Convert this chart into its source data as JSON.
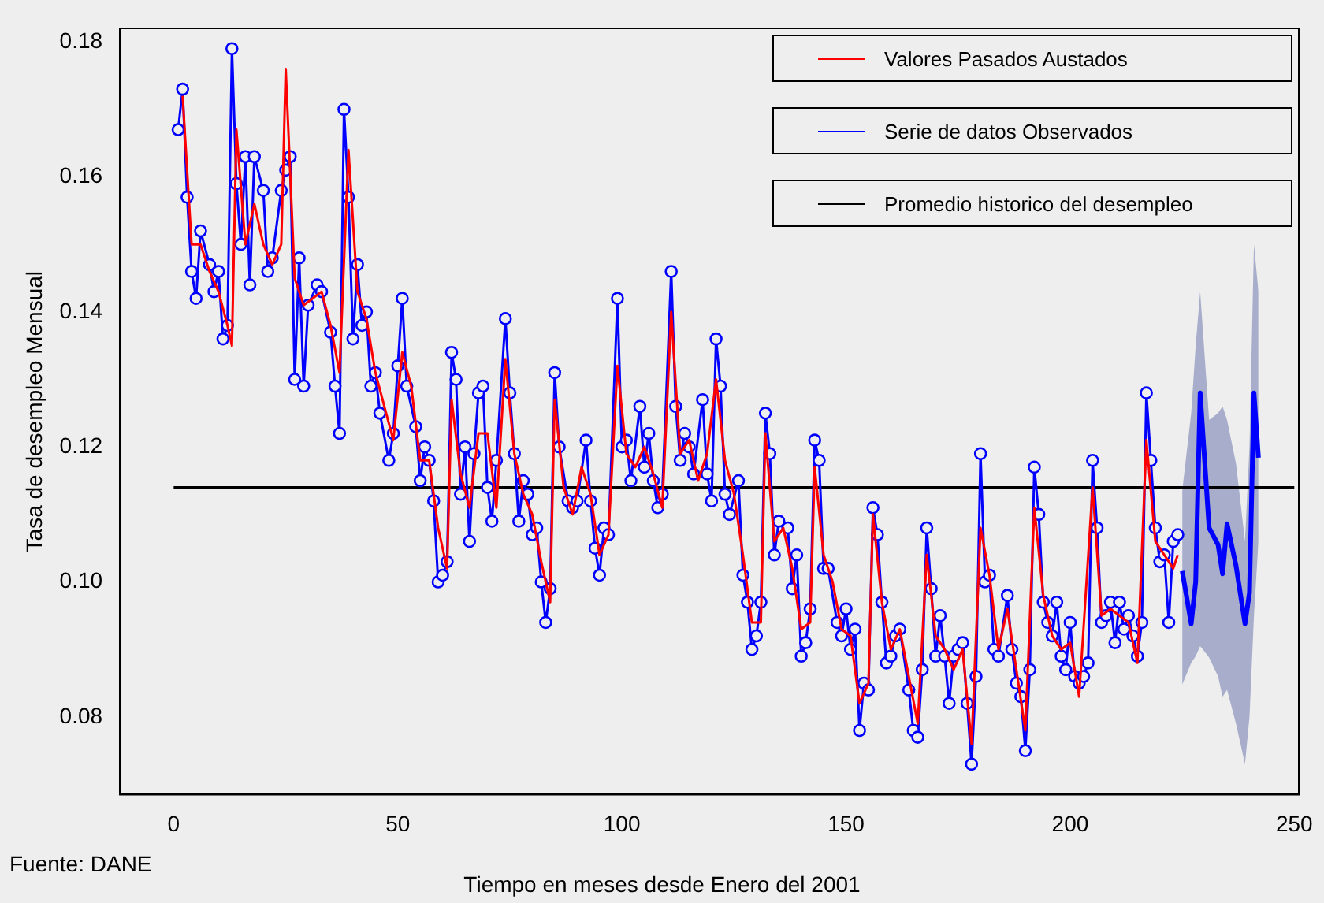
{
  "chart_data": {
    "type": "line",
    "xlabel": "Tiempo en meses desde Enero del 2001",
    "ylabel": "Tasa de desempleo Mensual",
    "xlim": [
      -12,
      251
    ],
    "xticks": [
      0,
      50,
      100,
      150,
      200,
      250
    ],
    "ylim": [
      0.0685,
      0.182
    ],
    "yticks": [
      0.08,
      {
        "value": 0.1,
        "label": "0.10"
      },
      0.12,
      0.14,
      0.16,
      0.18
    ],
    "grid": false,
    "legend": "top right",
    "annotations": [
      "Fuente: DANE"
    ],
    "series": [
      {
        "name": "Valores  Pasados Austados",
        "color": "#ff0000",
        "marker": "none",
        "x": [
          2,
          4,
          6,
          8,
          10,
          12,
          13,
          14,
          16,
          18,
          20,
          22,
          24,
          25,
          27,
          29,
          31,
          33,
          35,
          37,
          39,
          41,
          43,
          45,
          47,
          49,
          51,
          53,
          55,
          57,
          59,
          61,
          62,
          64,
          66,
          68,
          70,
          72,
          74,
          76,
          78,
          80,
          82,
          84,
          85,
          87,
          89,
          91,
          93,
          95,
          97,
          99,
          101,
          103,
          105,
          107,
          109,
          111,
          113,
          115,
          117,
          119,
          121,
          123,
          125,
          127,
          129,
          131,
          132,
          134,
          136,
          138,
          140,
          142,
          143,
          145,
          147,
          149,
          151,
          153,
          155,
          156,
          158,
          160,
          162,
          164,
          166,
          168,
          170,
          172,
          174,
          176,
          178,
          180,
          182,
          184,
          186,
          188,
          190,
          192,
          194,
          196,
          198,
          200,
          202,
          205,
          207,
          209,
          211,
          213,
          215,
          217,
          219,
          221,
          223,
          224
        ],
        "values": [
          0.172,
          0.15,
          0.15,
          0.146,
          0.143,
          0.138,
          0.135,
          0.167,
          0.15,
          0.156,
          0.15,
          0.147,
          0.15,
          0.176,
          0.145,
          0.141,
          0.142,
          0.143,
          0.138,
          0.131,
          0.164,
          0.143,
          0.139,
          0.131,
          0.126,
          0.121,
          0.134,
          0.129,
          0.118,
          0.118,
          0.108,
          0.102,
          0.127,
          0.116,
          0.111,
          0.122,
          0.122,
          0.111,
          0.133,
          0.119,
          0.113,
          0.11,
          0.103,
          0.097,
          0.127,
          0.114,
          0.11,
          0.117,
          0.113,
          0.104,
          0.107,
          0.132,
          0.119,
          0.117,
          0.12,
          0.116,
          0.111,
          0.14,
          0.119,
          0.121,
          0.115,
          0.119,
          0.13,
          0.118,
          0.113,
          0.104,
          0.094,
          0.094,
          0.122,
          0.106,
          0.108,
          0.102,
          0.093,
          0.094,
          0.117,
          0.104,
          0.1,
          0.093,
          0.092,
          0.082,
          0.085,
          0.11,
          0.097,
          0.09,
          0.093,
          0.086,
          0.079,
          0.104,
          0.092,
          0.09,
          0.087,
          0.09,
          0.076,
          0.108,
          0.101,
          0.09,
          0.096,
          0.087,
          0.078,
          0.111,
          0.098,
          0.092,
          0.09,
          0.091,
          0.083,
          0.114,
          0.095,
          0.096,
          0.095,
          0.094,
          0.088,
          0.121,
          0.106,
          0.104,
          0.102,
          0.104
        ]
      },
      {
        "name": "Serie de datos Observados",
        "color": "#0000ff",
        "marker": "circle",
        "x": [
          1,
          2,
          3,
          4,
          5,
          6,
          8,
          9,
          10,
          11,
          12,
          13,
          14,
          15,
          16,
          17,
          18,
          20,
          21,
          22,
          24,
          25,
          26,
          27,
          28,
          29,
          30,
          32,
          33,
          35,
          36,
          37,
          38,
          39,
          40,
          41,
          42,
          43,
          44,
          45,
          46,
          48,
          49,
          50,
          51,
          52,
          54,
          55,
          56,
          57,
          58,
          59,
          60,
          61,
          62,
          63,
          64,
          65,
          66,
          67,
          68,
          69,
          70,
          71,
          72,
          74,
          75,
          76,
          77,
          78,
          79,
          80,
          81,
          82,
          83,
          84,
          85,
          86,
          88,
          89,
          90,
          92,
          93,
          94,
          95,
          96,
          97,
          99,
          100,
          101,
          102,
          104,
          105,
          106,
          107,
          108,
          109,
          111,
          112,
          113,
          114,
          115,
          116,
          118,
          119,
          120,
          121,
          122,
          123,
          124,
          126,
          127,
          128,
          129,
          130,
          131,
          132,
          133,
          134,
          135,
          137,
          138,
          139,
          140,
          141,
          142,
          143,
          144,
          145,
          146,
          148,
          149,
          150,
          151,
          152,
          153,
          154,
          155,
          156,
          157,
          158,
          159,
          160,
          161,
          162,
          164,
          165,
          166,
          167,
          168,
          169,
          170,
          171,
          172,
          173,
          174,
          175,
          176,
          177,
          178,
          179,
          180,
          181,
          182,
          183,
          184,
          186,
          187,
          188,
          189,
          190,
          191,
          192,
          193,
          194,
          195,
          196,
          197,
          198,
          199,
          200,
          201,
          202,
          203,
          204,
          205,
          206,
          207,
          208,
          209,
          210,
          211,
          212,
          213,
          214,
          215,
          216,
          217,
          218,
          219,
          220,
          221,
          222,
          223,
          224
        ],
        "values": [
          0.167,
          0.173,
          0.157,
          0.146,
          0.142,
          0.152,
          0.147,
          0.143,
          0.146,
          0.136,
          0.138,
          0.179,
          0.159,
          0.15,
          0.163,
          0.144,
          0.163,
          0.158,
          0.146,
          0.148,
          0.158,
          0.161,
          0.163,
          0.13,
          0.148,
          0.129,
          0.141,
          0.144,
          0.143,
          0.137,
          0.129,
          0.122,
          0.17,
          0.157,
          0.136,
          0.147,
          0.138,
          0.14,
          0.129,
          0.131,
          0.125,
          0.118,
          0.122,
          0.132,
          0.142,
          0.129,
          0.123,
          0.115,
          0.12,
          0.118,
          0.112,
          0.1,
          0.101,
          0.103,
          0.134,
          0.13,
          0.113,
          0.12,
          0.106,
          0.119,
          0.128,
          0.129,
          0.114,
          0.109,
          0.118,
          0.139,
          0.128,
          0.119,
          0.109,
          0.115,
          0.113,
          0.107,
          0.108,
          0.1,
          0.094,
          0.099,
          0.131,
          0.12,
          0.112,
          0.111,
          0.112,
          0.121,
          0.112,
          0.105,
          0.101,
          0.108,
          0.107,
          0.142,
          0.12,
          0.121,
          0.115,
          0.126,
          0.117,
          0.122,
          0.115,
          0.111,
          0.113,
          0.146,
          0.126,
          0.118,
          0.122,
          0.12,
          0.116,
          0.127,
          0.116,
          0.112,
          0.136,
          0.129,
          0.113,
          0.11,
          0.115,
          0.101,
          0.097,
          0.09,
          0.092,
          0.097,
          0.125,
          0.119,
          0.104,
          0.109,
          0.108,
          0.099,
          0.104,
          0.089,
          0.091,
          0.096,
          0.121,
          0.118,
          0.102,
          0.102,
          0.094,
          0.092,
          0.096,
          0.09,
          0.093,
          0.078,
          0.085,
          0.084,
          0.111,
          0.107,
          0.097,
          0.088,
          0.089,
          0.092,
          0.093,
          0.084,
          0.078,
          0.077,
          0.087,
          0.108,
          0.099,
          0.089,
          0.095,
          0.089,
          0.082,
          0.089,
          0.09,
          0.091,
          0.082,
          0.073,
          0.086,
          0.119,
          0.1,
          0.101,
          0.09,
          0.089,
          0.098,
          0.09,
          0.085,
          0.083,
          0.075,
          0.087,
          0.117,
          0.11,
          0.097,
          0.094,
          0.092,
          0.097,
          0.089,
          0.087,
          0.094,
          0.086,
          0.085,
          0.086,
          0.088,
          0.118,
          0.108,
          0.094,
          0.095,
          0.097,
          0.091,
          0.097,
          0.093,
          0.095,
          0.092,
          0.089,
          0.094,
          0.128,
          0.118,
          0.108,
          0.103,
          0.104,
          0.094,
          0.106,
          0.107
        ]
      },
      {
        "color": "#0000ff",
        "marker": "none",
        "x": [
          225,
          227,
          228,
          229,
          231,
          233,
          234,
          235,
          237,
          239,
          240,
          241,
          242
        ],
        "values": [
          0.1016,
          0.0938,
          0.1,
          0.128,
          0.108,
          0.1055,
          0.1012,
          0.1086,
          0.1024,
          0.0938,
          0.0984,
          0.128,
          0.1184
        ],
        "lower": [
          0.0848,
          0.088,
          0.089,
          0.0905,
          0.0888,
          0.086,
          0.083,
          0.084,
          0.079,
          0.073,
          0.08,
          0.095,
          0.106
        ],
        "upper": [
          0.1135,
          0.125,
          0.135,
          0.143,
          0.124,
          0.125,
          0.126,
          0.124,
          0.1175,
          0.106,
          0.12,
          0.15,
          0.143
        ]
      },
      {
        "name": "Promedio historico del desempleo",
        "color": "#000000",
        "marker": "none",
        "x": [
          0,
          250
        ],
        "values": [
          0.114,
          0.114
        ]
      }
    ]
  }
}
